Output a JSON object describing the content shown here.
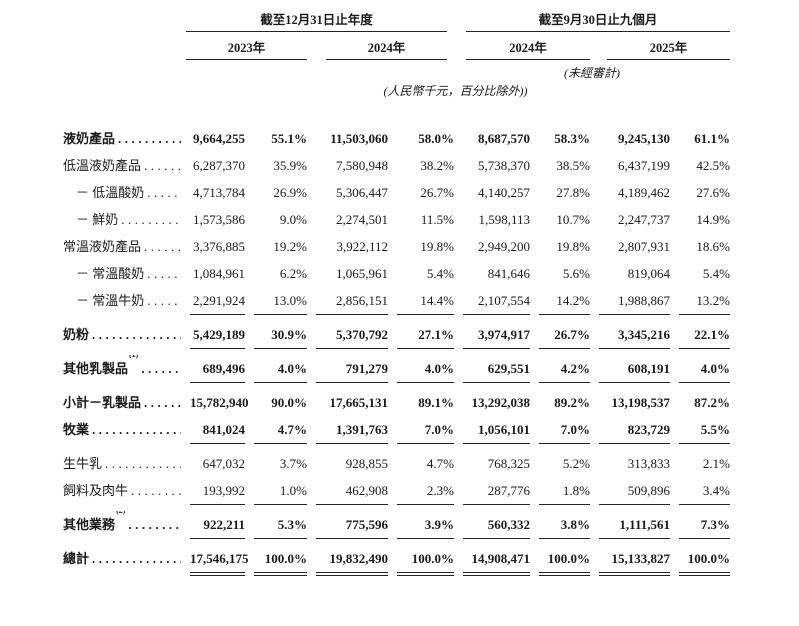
{
  "table": {
    "groups": [
      {
        "title": "截至12月31日止年度",
        "years": [
          "2023年",
          "2024年"
        ]
      },
      {
        "title": "截至9月30日止九個月",
        "years": [
          "2024年",
          "2025年"
        ]
      }
    ],
    "unaudited_note": "(未經審計)",
    "unit_note": "(人民幣千元，百分比除外))",
    "rows": [
      {
        "label": "液奶產品",
        "note": "",
        "indent": 0,
        "bold": true,
        "line": "none",
        "values": [
          "9,664,255",
          "55.1%",
          "11,503,060",
          "58.0%",
          "8,687,570",
          "58.3%",
          "9,245,130",
          "61.1%"
        ]
      },
      {
        "label": "低溫液奶產品",
        "note": "",
        "indent": 0,
        "bold": false,
        "line": "none",
        "values": [
          "6,287,370",
          "35.9%",
          "7,580,948",
          "38.2%",
          "5,738,370",
          "38.5%",
          "6,437,199",
          "42.5%"
        ]
      },
      {
        "label": "－ 低溫酸奶",
        "note": "",
        "indent": 1,
        "bold": false,
        "line": "none",
        "values": [
          "4,713,784",
          "26.9%",
          "5,306,447",
          "26.7%",
          "4,140,257",
          "27.8%",
          "4,189,462",
          "27.6%"
        ]
      },
      {
        "label": "－ 鮮奶",
        "note": "",
        "indent": 1,
        "bold": false,
        "line": "none",
        "values": [
          "1,573,586",
          "9.0%",
          "2,274,501",
          "11.5%",
          "1,598,113",
          "10.7%",
          "2,247,737",
          "14.9%"
        ]
      },
      {
        "label": "常溫液奶產品",
        "note": "",
        "indent": 0,
        "bold": false,
        "line": "none",
        "values": [
          "3,376,885",
          "19.2%",
          "3,922,112",
          "19.8%",
          "2,949,200",
          "19.8%",
          "2,807,931",
          "18.6%"
        ]
      },
      {
        "label": "－ 常溫酸奶",
        "note": "",
        "indent": 1,
        "bold": false,
        "line": "none",
        "values": [
          "1,084,961",
          "6.2%",
          "1,065,961",
          "5.4%",
          "841,646",
          "5.6%",
          "819,064",
          "5.4%"
        ]
      },
      {
        "label": "－ 常溫牛奶",
        "note": "",
        "indent": 1,
        "bold": false,
        "line": "single",
        "values": [
          "2,291,924",
          "13.0%",
          "2,856,151",
          "14.4%",
          "2,107,554",
          "14.2%",
          "1,988,867",
          "13.2%"
        ]
      },
      {
        "label": "奶粉",
        "note": "",
        "indent": 0,
        "bold": true,
        "line": "single",
        "values": [
          "5,429,189",
          "30.9%",
          "5,370,792",
          "27.1%",
          "3,974,917",
          "26.7%",
          "3,345,216",
          "22.1%"
        ]
      },
      {
        "label": "其他乳製品",
        "note": "(1)",
        "indent": 0,
        "bold": true,
        "line": "single",
        "values": [
          "689,496",
          "4.0%",
          "791,279",
          "4.0%",
          "629,551",
          "4.2%",
          "608,191",
          "4.0%"
        ]
      },
      {
        "label": "小計－乳製品",
        "note": "",
        "indent": 0,
        "bold": true,
        "line": "none",
        "values": [
          "15,782,940",
          "90.0%",
          "17,665,131",
          "89.1%",
          "13,292,038",
          "89.2%",
          "13,198,537",
          "87.2%"
        ]
      },
      {
        "label": "牧業",
        "note": "",
        "indent": 0,
        "bold": true,
        "line": "single",
        "values": [
          "841,024",
          "4.7%",
          "1,391,763",
          "7.0%",
          "1,056,101",
          "7.0%",
          "823,729",
          "5.5%"
        ]
      },
      {
        "label": "生牛乳",
        "note": "",
        "indent": 0,
        "bold": false,
        "line": "none",
        "values": [
          "647,032",
          "3.7%",
          "928,855",
          "4.7%",
          "768,325",
          "5.2%",
          "313,833",
          "2.1%"
        ]
      },
      {
        "label": "飼料及肉牛",
        "note": "",
        "indent": 0,
        "bold": false,
        "line": "single",
        "values": [
          "193,992",
          "1.0%",
          "462,908",
          "2.3%",
          "287,776",
          "1.8%",
          "509,896",
          "3.4%"
        ]
      },
      {
        "label": "其他業務",
        "note": "(2)",
        "indent": 0,
        "bold": true,
        "line": "single",
        "values": [
          "922,211",
          "5.3%",
          "775,596",
          "3.9%",
          "560,332",
          "3.8%",
          "1,111,561",
          "7.3%"
        ]
      },
      {
        "label": "總計",
        "note": "",
        "indent": 0,
        "bold": true,
        "line": "double",
        "values": [
          "17,546,175",
          "100.0%",
          "19,832,490",
          "100.0%",
          "14,908,471",
          "100.0%",
          "15,133,827",
          "100.0%"
        ]
      }
    ]
  }
}
